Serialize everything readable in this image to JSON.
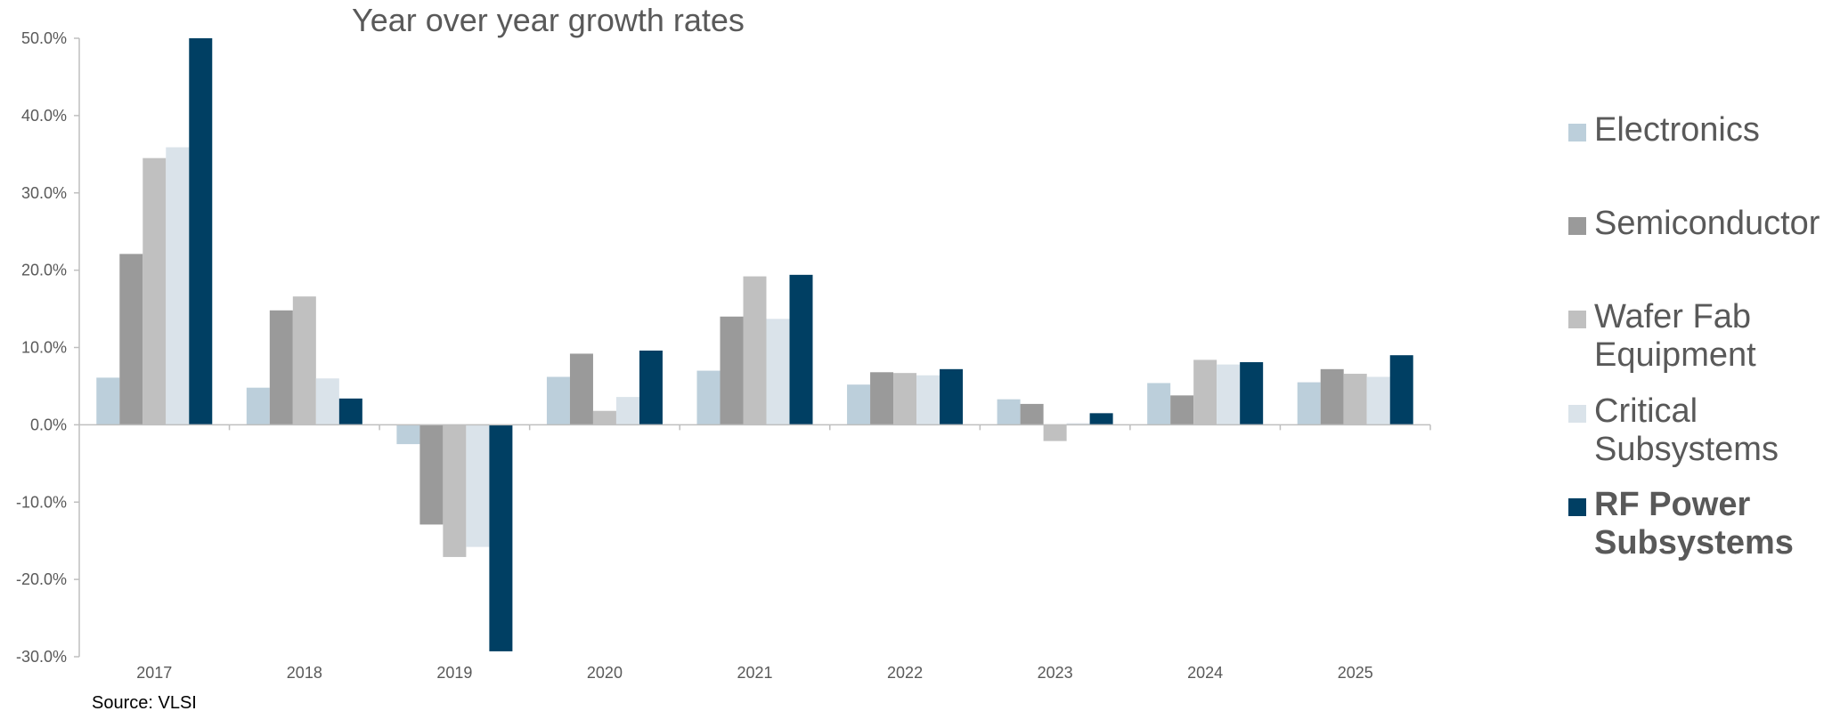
{
  "chart_data": {
    "type": "bar",
    "title": "Year over year growth rates",
    "source": "Source: VLSI",
    "categories": [
      "2017",
      "2018",
      "2019",
      "2020",
      "2021",
      "2022",
      "2023",
      "2024",
      "2025"
    ],
    "ylim": [
      -30,
      50
    ],
    "yticks": [
      -30,
      -20,
      -10,
      0,
      10,
      20,
      30,
      40,
      50
    ],
    "ytick_labels": [
      "-30.0%",
      "-20.0%",
      "-10.0%",
      "0.0%",
      "10.0%",
      "20.0%",
      "30.0%",
      "40.0%",
      "50.0%"
    ],
    "grid": false,
    "legend_position": "right",
    "series": [
      {
        "name": "Electronics",
        "legend_lines": [
          "Electronics"
        ],
        "color": "#BCCFDB",
        "bold": false,
        "values": [
          6.1,
          4.8,
          -2.5,
          6.2,
          7.0,
          5.2,
          3.3,
          5.4,
          5.5
        ]
      },
      {
        "name": "Semiconductor",
        "legend_lines": [
          "Semiconductor"
        ],
        "color": "#9A9A9A",
        "bold": false,
        "values": [
          22.1,
          14.8,
          -12.9,
          9.2,
          14.0,
          6.8,
          2.7,
          3.8,
          7.2
        ]
      },
      {
        "name": "Wafer Fab Equipment",
        "legend_lines": [
          "Wafer Fab",
          "Equipment"
        ],
        "color": "#C0C0C0",
        "bold": false,
        "values": [
          34.5,
          16.6,
          -17.1,
          1.8,
          19.2,
          6.7,
          -2.1,
          8.4,
          6.6
        ]
      },
      {
        "name": "Critical Subsystems",
        "legend_lines": [
          "Critical",
          "Subsystems"
        ],
        "color": "#DAE3EA",
        "bold": false,
        "values": [
          35.9,
          6.0,
          -15.8,
          3.6,
          13.7,
          6.4,
          0.2,
          7.8,
          6.2
        ]
      },
      {
        "name": "RF Power Subsystems",
        "legend_lines": [
          "RF Power",
          "Subsystems"
        ],
        "color": "#003F63",
        "bold": true,
        "values": [
          50.0,
          3.4,
          -29.3,
          9.6,
          19.4,
          7.2,
          1.5,
          8.1,
          9.0
        ]
      }
    ]
  }
}
